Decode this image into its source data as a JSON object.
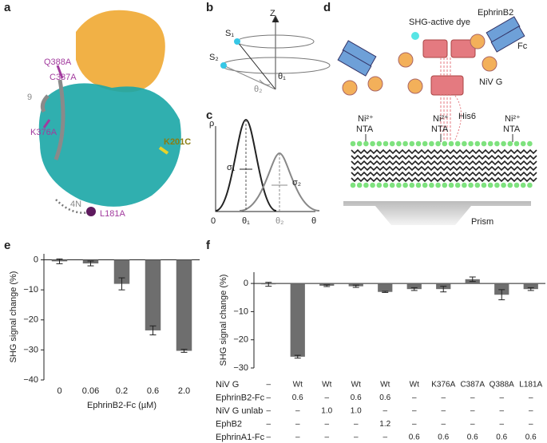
{
  "panels": {
    "a": {
      "letter": "a",
      "labels": [
        "Q388A",
        "C387A",
        "9",
        "K376A",
        "K201C",
        "4N",
        "L181A"
      ]
    },
    "b": {
      "letter": "b",
      "labels": [
        "Z",
        "S₁",
        "S₂",
        "θ₂",
        "θ₁"
      ]
    },
    "c": {
      "letter": "c",
      "labels": [
        "ρ",
        "σ₁",
        "σ₂",
        "0",
        "θ₁",
        "θ₂",
        "θ"
      ]
    },
    "d": {
      "letter": "d",
      "labels": [
        "SHG-active dye",
        "EphrinB2",
        "Fc",
        "NiV G",
        "Ni²⁺",
        "NTA",
        "Ni²⁺",
        "NTA",
        "Ni²⁺",
        "NTA",
        "His6",
        "Prism"
      ]
    }
  },
  "chart_data": [
    {
      "type": "bar",
      "letter": "e",
      "xlabel": "EphrinB2-Fc (µM)",
      "ylabel": "SHG signal change (%)",
      "categories": [
        "0",
        "0.06",
        "0.2",
        "0.6",
        "2.0"
      ],
      "values": [
        -0.5,
        -1.2,
        -8,
        -23.5,
        -30.3
      ],
      "errors": [
        0.8,
        0.8,
        2,
        1.5,
        0.5
      ],
      "color": "#6e6e6e",
      "ylim": [
        -40,
        2
      ],
      "yticks": [
        0,
        {
          "value": -10,
          "label": "−10"
        },
        {
          "value": -20,
          "label": "−20"
        },
        {
          "value": -30,
          "label": "−30"
        },
        {
          "value": -40,
          "label": "−40"
        }
      ]
    },
    {
      "type": "bar",
      "letter": "f",
      "ylabel": "SHG signal change (%)",
      "values": [
        -0.3,
        -26,
        -0.8,
        -1,
        -3,
        -2,
        -2,
        1.5,
        -4,
        -2
      ],
      "errors": [
        0.7,
        0.5,
        0.3,
        0.4,
        0.2,
        0.5,
        1,
        0.8,
        1.8,
        0.5
      ],
      "color": "#6e6e6e",
      "ylim": [
        -30,
        4
      ],
      "yticks": [
        0,
        {
          "value": -10,
          "label": "−10"
        },
        {
          "value": -20,
          "label": "−20"
        },
        {
          "value": -30,
          "label": "−30"
        }
      ],
      "table": [
        {
          "label": "NiV G",
          "cells": [
            "–",
            "Wt",
            "Wt",
            "Wt",
            "Wt",
            "Wt",
            "K376A",
            "C387A",
            "Q388A",
            "L181A"
          ]
        },
        {
          "label": "EphrinB2-Fc",
          "cells": [
            "–",
            "0.6",
            "–",
            "0.6",
            "0.6",
            "–",
            "–",
            "–",
            "–",
            "–"
          ]
        },
        {
          "label": "NiV G unlab",
          "cells": [
            "–",
            "–",
            "1.0",
            "1.0",
            "–",
            "–",
            "–",
            "–",
            "–",
            "–"
          ]
        },
        {
          "label": "EphB2",
          "cells": [
            "–",
            "–",
            "–",
            "–",
            "1.2",
            "–",
            "–",
            "–",
            "–",
            "–"
          ]
        },
        {
          "label": "EphrinA1-Fc",
          "cells": [
            "–",
            "–",
            "–",
            "–",
            "–",
            "0.6",
            "0.6",
            "0.6",
            "0.6",
            "0.6"
          ]
        }
      ]
    }
  ]
}
